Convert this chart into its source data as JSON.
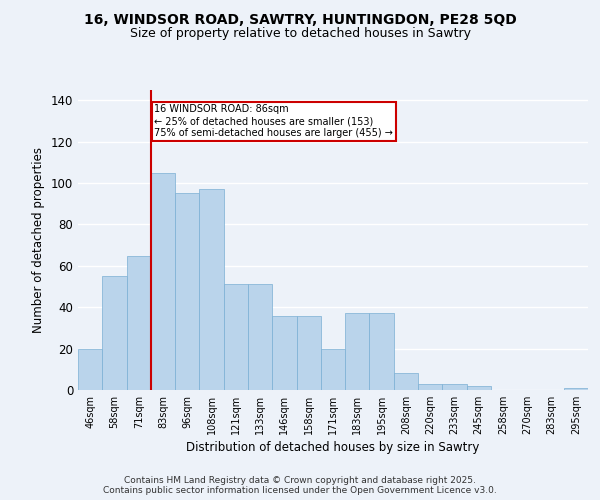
{
  "title_line1": "16, WINDSOR ROAD, SAWTRY, HUNTINGDON, PE28 5QD",
  "title_line2": "Size of property relative to detached houses in Sawtry",
  "xlabel": "Distribution of detached houses by size in Sawtry",
  "ylabel": "Number of detached properties",
  "categories": [
    "46sqm",
    "58sqm",
    "71sqm",
    "83sqm",
    "96sqm",
    "108sqm",
    "121sqm",
    "133sqm",
    "146sqm",
    "158sqm",
    "171sqm",
    "183sqm",
    "195sqm",
    "208sqm",
    "220sqm",
    "233sqm",
    "245sqm",
    "258sqm",
    "270sqm",
    "283sqm",
    "295sqm"
  ],
  "values": [
    20,
    55,
    65,
    105,
    95,
    97,
    51,
    51,
    36,
    36,
    20,
    37,
    37,
    8,
    3,
    3,
    2,
    0,
    0,
    0,
    1
  ],
  "bar_color": "#bad4eb",
  "bar_edge_color": "#7aafd4",
  "property_label": "16 WINDSOR ROAD: 86sqm",
  "annotation_line2": "← 25% of detached houses are smaller (153)",
  "annotation_line3": "75% of semi-detached houses are larger (455) →",
  "vline_color": "#cc0000",
  "vline_x": 2.5,
  "annotation_box_edge": "#cc0000",
  "background_color": "#edf2f9",
  "grid_color": "#ffffff",
  "footer_line1": "Contains HM Land Registry data © Crown copyright and database right 2025.",
  "footer_line2": "Contains public sector information licensed under the Open Government Licence v3.0.",
  "ylim": [
    0,
    145
  ],
  "yticks": [
    0,
    20,
    40,
    60,
    80,
    100,
    120,
    140
  ]
}
